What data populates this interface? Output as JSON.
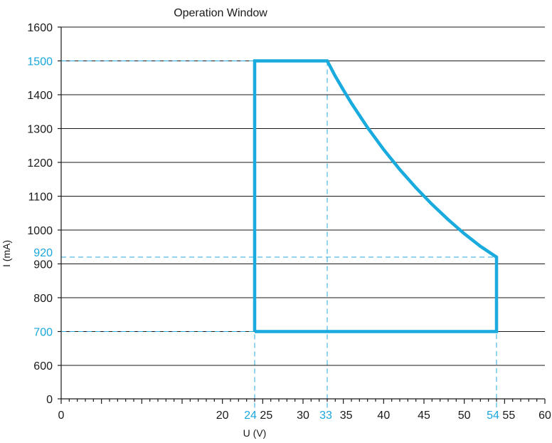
{
  "chart_data": {
    "type": "line",
    "title": "Operation Window",
    "xlabel": "U (V)",
    "ylabel": "I (mA)",
    "x_ticks": [
      0,
      20,
      25,
      30,
      35,
      40,
      45,
      50,
      55,
      60
    ],
    "y_ticks": [
      0,
      600,
      800,
      900,
      1000,
      1100,
      1200,
      1300,
      1400,
      1600
    ],
    "x_highlight": [
      24,
      33,
      54
    ],
    "y_highlight": [
      700,
      920,
      1500
    ],
    "series": [
      {
        "points": [
          [
            24,
            700
          ],
          [
            24,
            1500
          ],
          [
            33,
            1500
          ],
          [
            34,
            1455
          ],
          [
            35,
            1414
          ],
          [
            36,
            1375
          ],
          [
            38,
            1303
          ],
          [
            40,
            1238
          ],
          [
            42,
            1179
          ],
          [
            44,
            1125
          ],
          [
            46,
            1076
          ],
          [
            48,
            1031
          ],
          [
            50,
            989
          ],
          [
            52,
            952
          ],
          [
            54,
            920
          ],
          [
            54,
            700
          ],
          [
            24,
            700
          ]
        ]
      }
    ],
    "colors": {
      "window": "#19aade",
      "highlight": "#1aa6dc",
      "grid": "#1a1a1a"
    },
    "grid": true
  }
}
